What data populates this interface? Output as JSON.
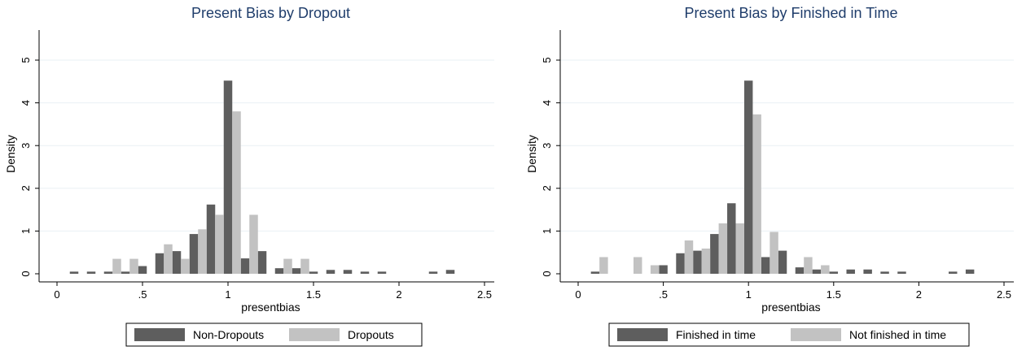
{
  "chart_data": [
    {
      "type": "bar",
      "title": "Present Bias by Dropout",
      "xlabel": "presentbias",
      "ylabel": "Density",
      "xlim": [
        0,
        2.5
      ],
      "ylim": [
        0,
        5
      ],
      "xticks": [
        {
          "v": 0,
          "label": "0"
        },
        {
          "v": 0.5,
          "label": ".5"
        },
        {
          "v": 1,
          "label": "1"
        },
        {
          "v": 1.5,
          "label": "1.5"
        },
        {
          "v": 2,
          "label": "2"
        },
        {
          "v": 2.5,
          "label": "2.5"
        }
      ],
      "yticks": [
        {
          "v": 0,
          "label": "0"
        },
        {
          "v": 1,
          "label": "1"
        },
        {
          "v": 2,
          "label": "2"
        },
        {
          "v": 3,
          "label": "3"
        },
        {
          "v": 4,
          "label": "4"
        },
        {
          "v": 5,
          "label": "5"
        }
      ],
      "grid": true,
      "legend_position": "bottom",
      "bin_width": 0.1,
      "series": [
        {
          "name": "Non-Dropouts",
          "color": "#5e5e5e",
          "bars": [
            {
              "x": 0.1,
              "y": 0.05
            },
            {
              "x": 0.2,
              "y": 0.05
            },
            {
              "x": 0.3,
              "y": 0.05
            },
            {
              "x": 0.4,
              "y": 0.05
            },
            {
              "x": 0.5,
              "y": 0.18
            },
            {
              "x": 0.6,
              "y": 0.48
            },
            {
              "x": 0.7,
              "y": 0.53
            },
            {
              "x": 0.8,
              "y": 0.93
            },
            {
              "x": 0.9,
              "y": 1.62
            },
            {
              "x": 1.0,
              "y": 4.52
            },
            {
              "x": 1.1,
              "y": 0.36
            },
            {
              "x": 1.2,
              "y": 0.53
            },
            {
              "x": 1.3,
              "y": 0.13
            },
            {
              "x": 1.4,
              "y": 0.13
            },
            {
              "x": 1.5,
              "y": 0.05
            },
            {
              "x": 1.6,
              "y": 0.09
            },
            {
              "x": 1.7,
              "y": 0.09
            },
            {
              "x": 1.8,
              "y": 0.05
            },
            {
              "x": 1.9,
              "y": 0.05
            },
            {
              "x": 2.2,
              "y": 0.05
            },
            {
              "x": 2.3,
              "y": 0.09
            }
          ]
        },
        {
          "name": "Dropouts",
          "color": "#c2c2c2",
          "bars": [
            {
              "x": 0.35,
              "y": 0.35
            },
            {
              "x": 0.45,
              "y": 0.35
            },
            {
              "x": 0.65,
              "y": 0.69
            },
            {
              "x": 0.75,
              "y": 0.35
            },
            {
              "x": 0.85,
              "y": 1.04
            },
            {
              "x": 0.95,
              "y": 1.38
            },
            {
              "x": 1.05,
              "y": 3.8
            },
            {
              "x": 1.15,
              "y": 1.38
            },
            {
              "x": 1.35,
              "y": 0.35
            },
            {
              "x": 1.45,
              "y": 0.35
            }
          ]
        }
      ]
    },
    {
      "type": "bar",
      "title": "Present Bias by Finished in Time",
      "xlabel": "presentbias",
      "ylabel": "Density",
      "xlim": [
        0,
        2.5
      ],
      "ylim": [
        0,
        5
      ],
      "xticks": [
        {
          "v": 0,
          "label": "0"
        },
        {
          "v": 0.5,
          "label": ".5"
        },
        {
          "v": 1,
          "label": "1"
        },
        {
          "v": 1.5,
          "label": "1.5"
        },
        {
          "v": 2,
          "label": "2"
        },
        {
          "v": 2.5,
          "label": "2.5"
        }
      ],
      "yticks": [
        {
          "v": 0,
          "label": "0"
        },
        {
          "v": 1,
          "label": "1"
        },
        {
          "v": 2,
          "label": "2"
        },
        {
          "v": 3,
          "label": "3"
        },
        {
          "v": 4,
          "label": "4"
        },
        {
          "v": 5,
          "label": "5"
        }
      ],
      "grid": true,
      "legend_position": "bottom",
      "bin_width": 0.1,
      "series": [
        {
          "name": "Finished in time",
          "color": "#5e5e5e",
          "bars": [
            {
              "x": 0.1,
              "y": 0.05
            },
            {
              "x": 0.5,
              "y": 0.2
            },
            {
              "x": 0.6,
              "y": 0.48
            },
            {
              "x": 0.7,
              "y": 0.54
            },
            {
              "x": 0.8,
              "y": 0.93
            },
            {
              "x": 0.9,
              "y": 1.65
            },
            {
              "x": 1.0,
              "y": 4.52
            },
            {
              "x": 1.1,
              "y": 0.39
            },
            {
              "x": 1.2,
              "y": 0.54
            },
            {
              "x": 1.3,
              "y": 0.15
            },
            {
              "x": 1.4,
              "y": 0.1
            },
            {
              "x": 1.5,
              "y": 0.05
            },
            {
              "x": 1.6,
              "y": 0.1
            },
            {
              "x": 1.7,
              "y": 0.1
            },
            {
              "x": 1.8,
              "y": 0.05
            },
            {
              "x": 1.9,
              "y": 0.05
            },
            {
              "x": 2.2,
              "y": 0.05
            },
            {
              "x": 2.3,
              "y": 0.1
            }
          ]
        },
        {
          "name": "Not finished in time",
          "color": "#c2c2c2",
          "bars": [
            {
              "x": 0.15,
              "y": 0.39
            },
            {
              "x": 0.35,
              "y": 0.39
            },
            {
              "x": 0.45,
              "y": 0.2
            },
            {
              "x": 0.65,
              "y": 0.78
            },
            {
              "x": 0.75,
              "y": 0.59
            },
            {
              "x": 0.85,
              "y": 1.18
            },
            {
              "x": 0.95,
              "y": 1.18
            },
            {
              "x": 1.05,
              "y": 3.73
            },
            {
              "x": 1.15,
              "y": 0.98
            },
            {
              "x": 1.35,
              "y": 0.39
            },
            {
              "x": 1.45,
              "y": 0.2
            }
          ]
        }
      ]
    }
  ]
}
